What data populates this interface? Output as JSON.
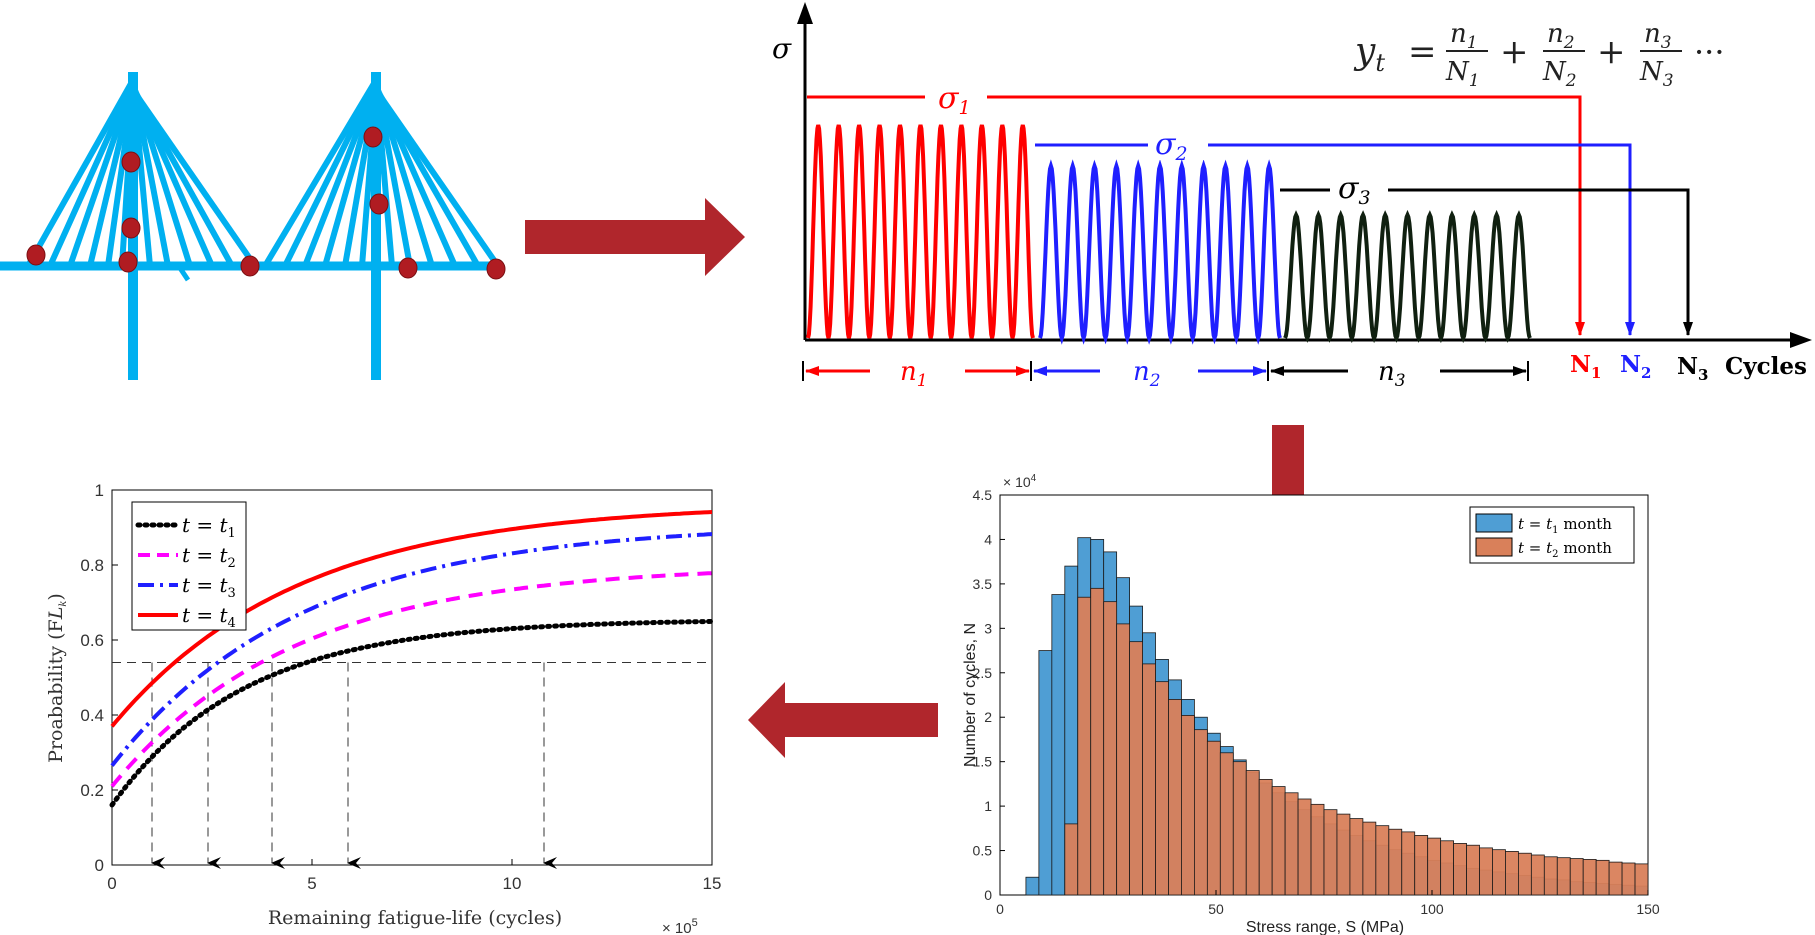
{
  "colors": {
    "cable": "#00b0f0",
    "dot": "#b01c22",
    "arrow": "#b0262c",
    "red": "#ff0000",
    "blue": "#1f1fff",
    "black": "#000000",
    "dark_green": "#102010",
    "magenta": "#ff00ff",
    "hist1": "#4f9ed4",
    "hist2": "#d9805a"
  },
  "icons": {
    "bridge": "cable-stayed-bridge-illustration",
    "flow_right": "arrow-right-icon",
    "flow_down": "arrow-down-icon",
    "flow_left": "arrow-left-icon"
  },
  "loading_diagram": {
    "sigma_axis": "σ",
    "formula_lhs": "y",
    "formula_lhs_sub": "t",
    "formula_terms": [
      {
        "num": "n",
        "num_sub": "1",
        "den": "N",
        "den_sub": "1"
      },
      {
        "num": "n",
        "num_sub": "2",
        "den": "N",
        "den_sub": "2"
      },
      {
        "num": "n",
        "num_sub": "3",
        "den": "N",
        "den_sub": "3"
      }
    ],
    "formula_plus": "+",
    "formula_eq": "=",
    "formula_dots": "···",
    "stress_levels": [
      {
        "label": "σ",
        "sub": "1"
      },
      {
        "label": "σ",
        "sub": "2"
      },
      {
        "label": "σ",
        "sub": "3"
      }
    ],
    "cycle_counts": [
      {
        "label": "n",
        "sub": "1"
      },
      {
        "label": "n",
        "sub": "2"
      },
      {
        "label": "n",
        "sub": "3"
      }
    ],
    "lives": [
      {
        "label": "N",
        "sub": "1"
      },
      {
        "label": "N",
        "sub": "2"
      },
      {
        "label": "N",
        "sub": "3"
      }
    ],
    "x_axis": "Cycles"
  },
  "chart_data": [
    {
      "type": "bar",
      "xlabel": "Stress range, S (MPa)",
      "ylabel": "Number of cycles, N",
      "y_exponent_label": "× 10",
      "y_exponent_power": "4",
      "xlim": [
        0,
        150
      ],
      "ylim": [
        0,
        4.5
      ],
      "xticks": [
        "0",
        "50",
        "100",
        "150"
      ],
      "yticks": [
        "0",
        "0.5",
        "1",
        "1.5",
        "2",
        "2.5",
        "3",
        "3.5",
        "4",
        "4.5"
      ],
      "legend_position": "top-right",
      "bin_width": 3,
      "bin_start": 0,
      "series": [
        {
          "name": "t = t1 month",
          "name_main": "t = t",
          "name_sub": "1",
          "name_tail": " month",
          "values": [
            0,
            0,
            0.2,
            2.75,
            3.38,
            3.7,
            4.02,
            4.0,
            3.86,
            3.57,
            3.25,
            2.95,
            2.65,
            2.42,
            2.2,
            2.0,
            1.82,
            1.67,
            1.52,
            1.38,
            1.26,
            1.15,
            1.05,
            0.96,
            0.88,
            0.8,
            0.73,
            0.67,
            0.61,
            0.56,
            0.51,
            0.47,
            0.43,
            0.39,
            0.36,
            0.33,
            0.3,
            0.28,
            0.26,
            0.24,
            0.22,
            0.2,
            0.18,
            0.17,
            0.15,
            0.14,
            0.13,
            0.12,
            0.11,
            0.1
          ]
        },
        {
          "name": "t = t2 month",
          "name_main": "t = t",
          "name_sub": "2",
          "name_tail": " month",
          "values": [
            0,
            0,
            0,
            0,
            0,
            0.8,
            3.35,
            3.45,
            3.3,
            3.05,
            2.85,
            2.6,
            2.4,
            2.2,
            2.02,
            1.86,
            1.73,
            1.6,
            1.5,
            1.4,
            1.3,
            1.22,
            1.15,
            1.08,
            1.02,
            0.96,
            0.91,
            0.86,
            0.82,
            0.78,
            0.74,
            0.71,
            0.67,
            0.64,
            0.61,
            0.58,
            0.56,
            0.53,
            0.51,
            0.49,
            0.47,
            0.45,
            0.43,
            0.42,
            0.41,
            0.4,
            0.39,
            0.37,
            0.36,
            0.35
          ]
        }
      ]
    },
    {
      "type": "line",
      "xlabel": "Remaining fatigue-life (cycles)",
      "ylabel_main": "Proabability (F",
      "ylabel_sub": "L",
      "ylabel_subsub": "k",
      "ylabel_tail": ")",
      "x_exponent_label": "× 10",
      "x_exponent_power": "5",
      "xlim": [
        0,
        15
      ],
      "ylim": [
        0,
        1
      ],
      "xticks": [
        "0",
        "5",
        "10",
        "15"
      ],
      "yticks": [
        "0",
        "0.2",
        "0.4",
        "0.6",
        "0.8",
        "1"
      ],
      "legend_position": "top-left",
      "threshold": 0.54,
      "series": [
        {
          "name": "t = t1",
          "name_main": "t = t",
          "name_sub": "1",
          "style": "dotted",
          "color": "#000000",
          "y0": 0.16,
          "ymax": 0.655,
          "k": 0.3,
          "life": 5.9
        },
        {
          "name": "t = t2",
          "name_main": "t = t",
          "name_sub": "2",
          "style": "dashed",
          "color": "#ff00ff",
          "y0": 0.21,
          "ymax": 0.8,
          "k": 0.22,
          "life": 4.0
        },
        {
          "name": "t = t3",
          "name_main": "t = t",
          "name_sub": "3",
          "style": "dashdot",
          "color": "#1f1fff",
          "y0": 0.265,
          "ymax": 0.91,
          "k": 0.21,
          "life": 2.4
        },
        {
          "name": "t = t4",
          "name_main": "t = t",
          "name_sub": "4",
          "style": "solid",
          "color": "#ff0000",
          "y0": 0.37,
          "ymax": 0.965,
          "k": 0.215,
          "life": 1.0
        }
      ],
      "extra_arrow_x": 10.8
    }
  ]
}
